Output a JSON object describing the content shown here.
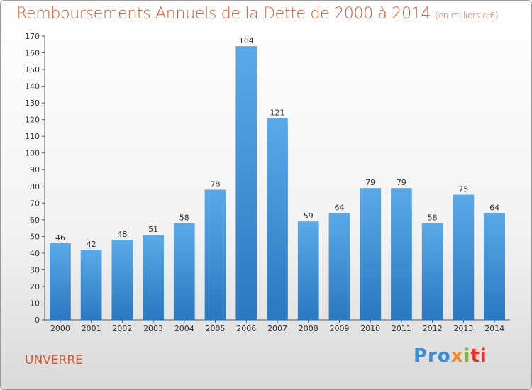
{
  "header": {
    "title": "Remboursements Annuels de la Dette de 2000 à 2014",
    "subtitle": "(en milliers d'€)"
  },
  "footer": {
    "town": "UNVERRE",
    "logo": [
      "Pro",
      "x",
      "i",
      "ti"
    ]
  },
  "colors": {
    "title": "#d9572f",
    "bar_top": "#5aaae8",
    "bar_bottom": "#2a78c0",
    "logo": [
      "#3a8fd6",
      "#f28c1c",
      "#7abb2d",
      "#e6332a"
    ]
  },
  "chart_data": {
    "type": "bar",
    "title": "Remboursements Annuels de la Dette de 2000 à 2014",
    "subtitle": "(en milliers d'€)",
    "xlabel": "",
    "ylabel": "",
    "categories": [
      "2000",
      "2001",
      "2002",
      "2003",
      "2004",
      "2005",
      "2006",
      "2007",
      "2008",
      "2009",
      "2010",
      "2011",
      "2012",
      "2013",
      "2014"
    ],
    "values": [
      46,
      42,
      48,
      51,
      58,
      78,
      164,
      121,
      59,
      64,
      79,
      79,
      58,
      75,
      64
    ],
    "ylim": [
      0,
      170
    ],
    "yticks": [
      0,
      10,
      20,
      30,
      40,
      50,
      60,
      70,
      80,
      90,
      100,
      110,
      120,
      130,
      140,
      150,
      160,
      170
    ],
    "grid": false,
    "legend": "none"
  }
}
